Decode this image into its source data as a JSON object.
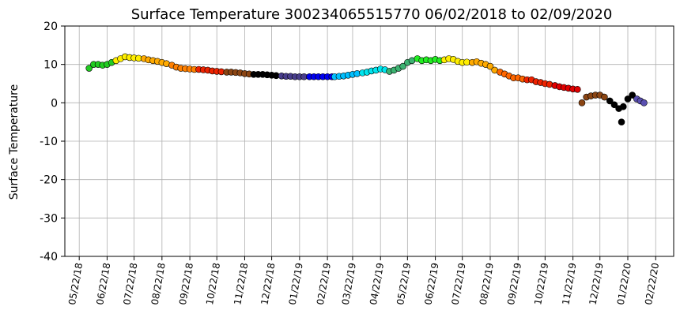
{
  "chart_data": {
    "type": "scatter",
    "title": "Surface Temperature 300234065515770  06/02/2018 to 02/09/2020",
    "y_label": "Surface Temperature",
    "xlim": [
      "05/06/18",
      "03/13/20"
    ],
    "xticks": [
      "05/22/18",
      "06/22/18",
      "07/22/18",
      "08/22/18",
      "09/22/18",
      "10/22/18",
      "11/22/18",
      "12/22/18",
      "01/22/19",
      "02/22/19",
      "03/22/19",
      "04/22/19",
      "05/22/19",
      "06/22/19",
      "07/22/19",
      "08/22/19",
      "09/22/19",
      "10/22/19",
      "11/22/19",
      "12/22/19",
      "01/22/20",
      "02/22/20"
    ],
    "ylim": [
      -40,
      20
    ],
    "yticks": [
      -40,
      -30,
      -20,
      -10,
      0,
      10,
      20
    ],
    "grid": true,
    "series": [
      {
        "color": "#22cc22",
        "x": [
          "06/02/18",
          "06/07/18",
          "06/12/18",
          "06/17/18",
          "06/22/18",
          "06/27/18"
        ],
        "values": [
          9,
          10,
          10,
          9.8,
          10,
          10.5
        ]
      },
      {
        "color": "#ffee00",
        "x": [
          "07/02/18",
          "07/07/18",
          "07/12/18",
          "07/17/18",
          "07/22/18",
          "07/27/18"
        ],
        "values": [
          11,
          11.5,
          12,
          11.8,
          11.7,
          11.6
        ]
      },
      {
        "color": "#ffaa00",
        "x": [
          "08/02/18",
          "08/07/18",
          "08/12/18",
          "08/17/18",
          "08/22/18",
          "08/27/18"
        ],
        "values": [
          11.5,
          11.2,
          11,
          10.8,
          10.5,
          10.2
        ]
      },
      {
        "color": "#ff8000",
        "x": [
          "09/02/18",
          "09/07/18",
          "09/12/18",
          "09/17/18",
          "09/22/18",
          "09/27/18"
        ],
        "values": [
          9.8,
          9.3,
          9,
          8.9,
          8.8,
          8.7
        ]
      },
      {
        "color": "#ee2200",
        "x": [
          "10/02/18",
          "10/07/18",
          "10/12/18",
          "10/17/18",
          "10/22/18",
          "10/27/18"
        ],
        "values": [
          8.7,
          8.6,
          8.5,
          8.3,
          8.2,
          8.1
        ]
      },
      {
        "color": "#8b4513",
        "x": [
          "11/02/18",
          "11/07/18",
          "11/12/18",
          "11/17/18",
          "11/22/18",
          "11/27/18"
        ],
        "values": [
          8,
          8,
          7.9,
          7.8,
          7.6,
          7.5
        ]
      },
      {
        "color": "#000000",
        "x": [
          "12/02/18",
          "12/07/18",
          "12/12/18",
          "12/17/18",
          "12/22/18",
          "12/27/18"
        ],
        "values": [
          7.4,
          7.4,
          7.4,
          7.3,
          7.2,
          7.1
        ]
      },
      {
        "color": "#483d8b",
        "x": [
          "01/02/19",
          "01/07/19",
          "01/12/19",
          "01/17/19",
          "01/22/19",
          "01/27/19"
        ],
        "values": [
          7,
          6.9,
          6.9,
          6.8,
          6.8,
          6.8
        ]
      },
      {
        "color": "#0000ee",
        "x": [
          "02/02/19",
          "02/07/19",
          "02/12/19",
          "02/17/19",
          "02/22/19",
          "02/27/19"
        ],
        "values": [
          6.8,
          6.8,
          6.8,
          6.8,
          6.8,
          6.8
        ]
      },
      {
        "color": "#00bfff",
        "x": [
          "03/02/19",
          "03/07/19",
          "03/12/19",
          "03/17/19",
          "03/22/19",
          "03/27/19"
        ],
        "values": [
          6.8,
          6.9,
          7,
          7.2,
          7.4,
          7.6
        ]
      },
      {
        "color": "#00e5ee",
        "x": [
          "04/02/19",
          "04/07/19",
          "04/12/19",
          "04/17/19",
          "04/22/19",
          "04/27/19"
        ],
        "values": [
          7.8,
          8,
          8.3,
          8.5,
          8.8,
          8.6
        ]
      },
      {
        "color": "#3cb371",
        "x": [
          "05/02/19",
          "05/07/19",
          "05/12/19",
          "05/17/19",
          "05/22/19",
          "05/27/19"
        ],
        "values": [
          8.2,
          8.5,
          9,
          9.5,
          10.5,
          11
        ]
      },
      {
        "color": "#22ee22",
        "x": [
          "06/02/19",
          "06/07/19",
          "06/12/19",
          "06/17/19",
          "06/22/19",
          "06/27/19"
        ],
        "values": [
          11.5,
          11,
          11.2,
          11,
          11.3,
          11
        ]
      },
      {
        "color": "#ffee00",
        "x": [
          "07/02/19",
          "07/07/19",
          "07/12/19",
          "07/17/19",
          "07/22/19",
          "07/27/19"
        ],
        "values": [
          11.2,
          11.5,
          11.3,
          10.8,
          10.5,
          10.6
        ]
      },
      {
        "color": "#ffaa00",
        "x": [
          "08/02/19",
          "08/07/19",
          "08/12/19",
          "08/17/19",
          "08/22/19",
          "08/27/19"
        ],
        "values": [
          10.5,
          10.7,
          10.3,
          10,
          9.5,
          8.5
        ]
      },
      {
        "color": "#ff6600",
        "x": [
          "09/02/19",
          "09/07/19",
          "09/12/19",
          "09/17/19",
          "09/22/19",
          "09/27/19"
        ],
        "values": [
          8,
          7.5,
          7,
          6.5,
          6.5,
          6.2
        ]
      },
      {
        "color": "#ee2200",
        "x": [
          "10/02/19",
          "10/07/19",
          "10/12/19",
          "10/17/19",
          "10/22/19",
          "10/27/19"
        ],
        "values": [
          6,
          6,
          5.5,
          5.3,
          5,
          4.8
        ]
      },
      {
        "color": "#e00000",
        "x": [
          "11/02/19",
          "11/07/19",
          "11/12/19",
          "11/17/19",
          "11/22/19",
          "11/27/19"
        ],
        "values": [
          4.5,
          4.2,
          4,
          3.8,
          3.6,
          3.5
        ]
      },
      {
        "color": "#8b4513",
        "x": [
          "12/02/19",
          "12/07/19",
          "12/12/19",
          "12/17/19",
          "12/22/19",
          "12/27/19"
        ],
        "values": [
          0,
          1.5,
          1.8,
          2,
          2,
          1.5
        ]
      },
      {
        "color": "#000000",
        "x": [
          "01/02/20",
          "01/07/20",
          "01/12/20",
          "01/15/20",
          "01/17/20",
          "01/22/20",
          "01/27/20"
        ],
        "values": [
          0.5,
          -0.5,
          -1.5,
          -5,
          -1,
          1,
          2
        ]
      },
      {
        "color": "#5a4fb0",
        "x": [
          "02/01/20",
          "02/05/20",
          "02/09/20"
        ],
        "values": [
          1,
          0.5,
          0
        ]
      }
    ]
  }
}
